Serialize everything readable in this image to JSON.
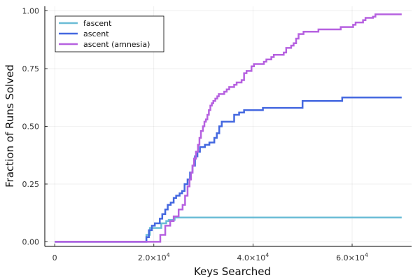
{
  "chart_data": {
    "type": "line",
    "title": "",
    "xlabel": "Keys Searched",
    "ylabel": "Fraction of Runs Solved",
    "xlim": [
      -2000,
      72000
    ],
    "ylim": [
      -0.02,
      1.02
    ],
    "grid": true,
    "legend_position": "top-left",
    "x_ticks": [
      {
        "value": 0,
        "base": "0",
        "exp": ""
      },
      {
        "value": 20000,
        "base": "2.0×10",
        "exp": "4"
      },
      {
        "value": 40000,
        "base": "4.0×10",
        "exp": "4"
      },
      {
        "value": 60000,
        "base": "6.0×10",
        "exp": "4"
      }
    ],
    "y_ticks": [
      {
        "value": 0.0,
        "label": "0.00"
      },
      {
        "value": 0.25,
        "label": "0.25"
      },
      {
        "value": 0.5,
        "label": "0.50"
      },
      {
        "value": 0.75,
        "label": "0.75"
      },
      {
        "value": 1.0,
        "label": "1.00"
      }
    ],
    "series": [
      {
        "name": "fascent",
        "color": "#6bbcd6",
        "step": true,
        "points": [
          [
            0,
            0
          ],
          [
            18000,
            0
          ],
          [
            18500,
            0.03
          ],
          [
            19200,
            0.06
          ],
          [
            21000,
            0.06
          ],
          [
            21500,
            0.08
          ],
          [
            22500,
            0.09
          ],
          [
            23000,
            0.095
          ],
          [
            24200,
            0.105
          ],
          [
            70000,
            0.105
          ]
        ]
      },
      {
        "name": "ascent",
        "color": "#4468e0",
        "step": true,
        "points": [
          [
            0,
            0
          ],
          [
            18000,
            0
          ],
          [
            18500,
            0.02
          ],
          [
            19000,
            0.05
          ],
          [
            19600,
            0.07
          ],
          [
            20200,
            0.08
          ],
          [
            21200,
            0.1
          ],
          [
            21700,
            0.12
          ],
          [
            22300,
            0.14
          ],
          [
            22800,
            0.16
          ],
          [
            23400,
            0.17
          ],
          [
            24000,
            0.19
          ],
          [
            24500,
            0.2
          ],
          [
            25200,
            0.21
          ],
          [
            25700,
            0.22
          ],
          [
            26200,
            0.25
          ],
          [
            26800,
            0.27
          ],
          [
            27300,
            0.3
          ],
          [
            27800,
            0.33
          ],
          [
            28300,
            0.37
          ],
          [
            28800,
            0.39
          ],
          [
            29300,
            0.41
          ],
          [
            30300,
            0.42
          ],
          [
            31200,
            0.43
          ],
          [
            32200,
            0.45
          ],
          [
            32700,
            0.47
          ],
          [
            33200,
            0.5
          ],
          [
            33700,
            0.52
          ],
          [
            36200,
            0.55
          ],
          [
            37200,
            0.56
          ],
          [
            38200,
            0.57
          ],
          [
            42000,
            0.58
          ],
          [
            46000,
            0.58
          ],
          [
            50000,
            0.61
          ],
          [
            58000,
            0.625
          ],
          [
            70000,
            0.625
          ]
        ]
      },
      {
        "name": "ascent (amnesia)",
        "color": "#b661e0",
        "step": true,
        "points": [
          [
            0,
            0
          ],
          [
            20800,
            0
          ],
          [
            21300,
            0.03
          ],
          [
            22300,
            0.07
          ],
          [
            23300,
            0.09
          ],
          [
            24000,
            0.11
          ],
          [
            25000,
            0.14
          ],
          [
            25800,
            0.16
          ],
          [
            26300,
            0.2
          ],
          [
            26800,
            0.24
          ],
          [
            27200,
            0.27
          ],
          [
            27500,
            0.3
          ],
          [
            27800,
            0.33
          ],
          [
            28100,
            0.36
          ],
          [
            28500,
            0.39
          ],
          [
            28900,
            0.42
          ],
          [
            29200,
            0.45
          ],
          [
            29500,
            0.48
          ],
          [
            29900,
            0.5
          ],
          [
            30200,
            0.52
          ],
          [
            30500,
            0.53
          ],
          [
            30800,
            0.55
          ],
          [
            31100,
            0.57
          ],
          [
            31400,
            0.59
          ],
          [
            31700,
            0.6
          ],
          [
            32000,
            0.61
          ],
          [
            32400,
            0.62
          ],
          [
            32800,
            0.63
          ],
          [
            33100,
            0.64
          ],
          [
            34200,
            0.65
          ],
          [
            34700,
            0.66
          ],
          [
            35200,
            0.67
          ],
          [
            36200,
            0.68
          ],
          [
            36700,
            0.69
          ],
          [
            37700,
            0.7
          ],
          [
            38200,
            0.73
          ],
          [
            38700,
            0.74
          ],
          [
            39700,
            0.76
          ],
          [
            40200,
            0.77
          ],
          [
            42200,
            0.78
          ],
          [
            42700,
            0.79
          ],
          [
            43700,
            0.8
          ],
          [
            44200,
            0.81
          ],
          [
            46200,
            0.82
          ],
          [
            46700,
            0.84
          ],
          [
            47700,
            0.85
          ],
          [
            48200,
            0.86
          ],
          [
            48700,
            0.88
          ],
          [
            49200,
            0.9
          ],
          [
            50200,
            0.91
          ],
          [
            52200,
            0.91
          ],
          [
            53200,
            0.92
          ],
          [
            57200,
            0.92
          ],
          [
            57700,
            0.93
          ],
          [
            60200,
            0.94
          ],
          [
            60700,
            0.95
          ],
          [
            62200,
            0.96
          ],
          [
            62700,
            0.97
          ],
          [
            64200,
            0.975
          ],
          [
            64700,
            0.985
          ],
          [
            70000,
            0.985
          ]
        ]
      }
    ]
  }
}
